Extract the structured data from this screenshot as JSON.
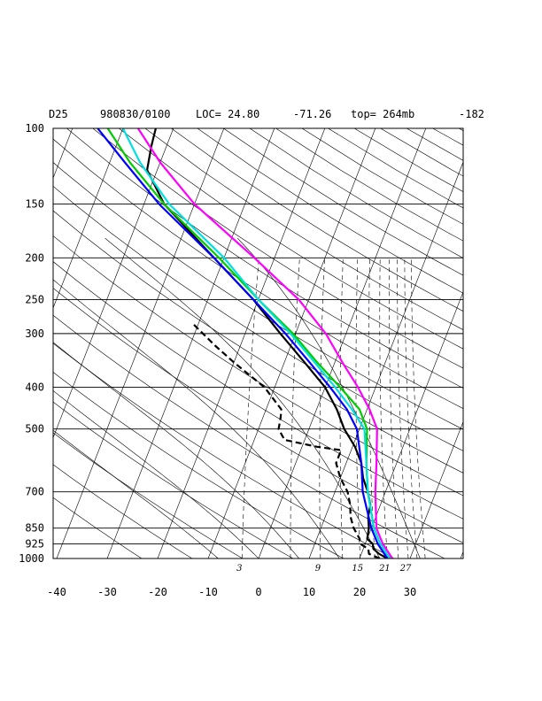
{
  "header": {
    "station": "D25",
    "datetime": "980830/0100",
    "loc": "LOC= 24.80",
    "lon": "-71.26",
    "top": "top= 264mb",
    "extra": "-182"
  },
  "chart_data": {
    "type": "line",
    "title": "",
    "xlabel": "",
    "ylabel": "",
    "pressure_levels": [
      100,
      150,
      200,
      250,
      300,
      400,
      500,
      700,
      850,
      925,
      1000
    ],
    "temperature_ticks": [
      -40,
      -30,
      -20,
      -10,
      0,
      10,
      20,
      30
    ],
    "mixing_ratio_labels": [
      "3",
      "9",
      "15",
      "21",
      "27"
    ],
    "xlim": [
      -40,
      40
    ],
    "ylim": [
      1000,
      100
    ],
    "colors": {
      "sounding": "#000000",
      "blue": "#0000ff",
      "green": "#00cc00",
      "cyan": "#00e0e0",
      "magenta": "#ff00ff"
    },
    "series": [
      {
        "key": "temperature",
        "color": "#000000",
        "style": "solid",
        "points": [
          [
            1000,
            25.5
          ],
          [
            975,
            23.5
          ],
          [
            950,
            22
          ],
          [
            925,
            21.5
          ],
          [
            900,
            20
          ],
          [
            850,
            19.5
          ],
          [
            800,
            18.5
          ],
          [
            750,
            18
          ],
          [
            700,
            16.5
          ],
          [
            650,
            14.5
          ],
          [
            600,
            13
          ],
          [
            550,
            10.5
          ],
          [
            500,
            7
          ],
          [
            450,
            4
          ],
          [
            400,
            0
          ],
          [
            350,
            -6
          ],
          [
            300,
            -13
          ],
          [
            250,
            -21
          ],
          [
            200,
            -32
          ],
          [
            150,
            -46
          ],
          [
            125,
            -52
          ],
          [
            110,
            -53
          ],
          [
            100,
            -53.5
          ]
        ]
      },
      {
        "key": "dewpoint",
        "color": "#000000",
        "style": "dashed",
        "points": [
          [
            1000,
            24
          ],
          [
            975,
            21.5
          ],
          [
            950,
            21
          ],
          [
            925,
            19
          ],
          [
            900,
            18.5
          ],
          [
            850,
            16.5
          ],
          [
            800,
            15
          ],
          [
            750,
            14
          ],
          [
            700,
            12.5
          ],
          [
            650,
            10
          ],
          [
            600,
            8
          ],
          [
            560,
            8
          ],
          [
            550,
            3
          ],
          [
            530,
            -4
          ],
          [
            500,
            -6
          ],
          [
            470,
            -6.5
          ],
          [
            450,
            -7
          ],
          [
            400,
            -12
          ],
          [
            350,
            -20
          ],
          [
            320,
            -25
          ],
          [
            285,
            -31
          ]
        ]
      },
      {
        "key": "blue",
        "color": "#0000ff",
        "style": "solid",
        "points": [
          [
            1000,
            25.5
          ],
          [
            925,
            22.5
          ],
          [
            850,
            20
          ],
          [
            700,
            15.5
          ],
          [
            600,
            13
          ],
          [
            500,
            9.5
          ],
          [
            450,
            6
          ],
          [
            400,
            1
          ],
          [
            350,
            -5
          ],
          [
            300,
            -12
          ],
          [
            250,
            -21
          ],
          [
            200,
            -32
          ],
          [
            150,
            -47
          ],
          [
            120,
            -57
          ],
          [
            100,
            -65
          ]
        ]
      },
      {
        "key": "green",
        "color": "#00cc00",
        "style": "solid",
        "points": [
          [
            1000,
            26
          ],
          [
            925,
            23
          ],
          [
            850,
            20.5
          ],
          [
            700,
            16.5
          ],
          [
            600,
            14
          ],
          [
            500,
            11.5
          ],
          [
            450,
            8.5
          ],
          [
            400,
            3
          ],
          [
            350,
            -3.5
          ],
          [
            300,
            -10.5
          ],
          [
            250,
            -20
          ],
          [
            200,
            -31
          ],
          [
            150,
            -46
          ],
          [
            120,
            -56
          ],
          [
            100,
            -63
          ]
        ]
      },
      {
        "key": "cyan",
        "color": "#00e0e0",
        "style": "solid",
        "points": [
          [
            1000,
            26
          ],
          [
            925,
            23
          ],
          [
            850,
            20.5
          ],
          [
            700,
            16.5
          ],
          [
            600,
            14
          ],
          [
            500,
            11
          ],
          [
            450,
            7
          ],
          [
            400,
            2
          ],
          [
            350,
            -4
          ],
          [
            300,
            -11
          ],
          [
            250,
            -20
          ],
          [
            200,
            -30
          ],
          [
            150,
            -45
          ],
          [
            120,
            -54
          ],
          [
            100,
            -60
          ]
        ]
      },
      {
        "key": "magenta",
        "color": "#ff00ff",
        "style": "solid",
        "points": [
          [
            1000,
            26.5
          ],
          [
            925,
            23.5
          ],
          [
            850,
            21
          ],
          [
            700,
            18
          ],
          [
            600,
            16
          ],
          [
            500,
            13.5
          ],
          [
            450,
            10.5
          ],
          [
            400,
            6.5
          ],
          [
            350,
            1.5
          ],
          [
            300,
            -4
          ],
          [
            250,
            -12
          ],
          [
            200,
            -24
          ],
          [
            150,
            -40
          ],
          [
            120,
            -50
          ],
          [
            100,
            -57
          ]
        ]
      }
    ]
  }
}
